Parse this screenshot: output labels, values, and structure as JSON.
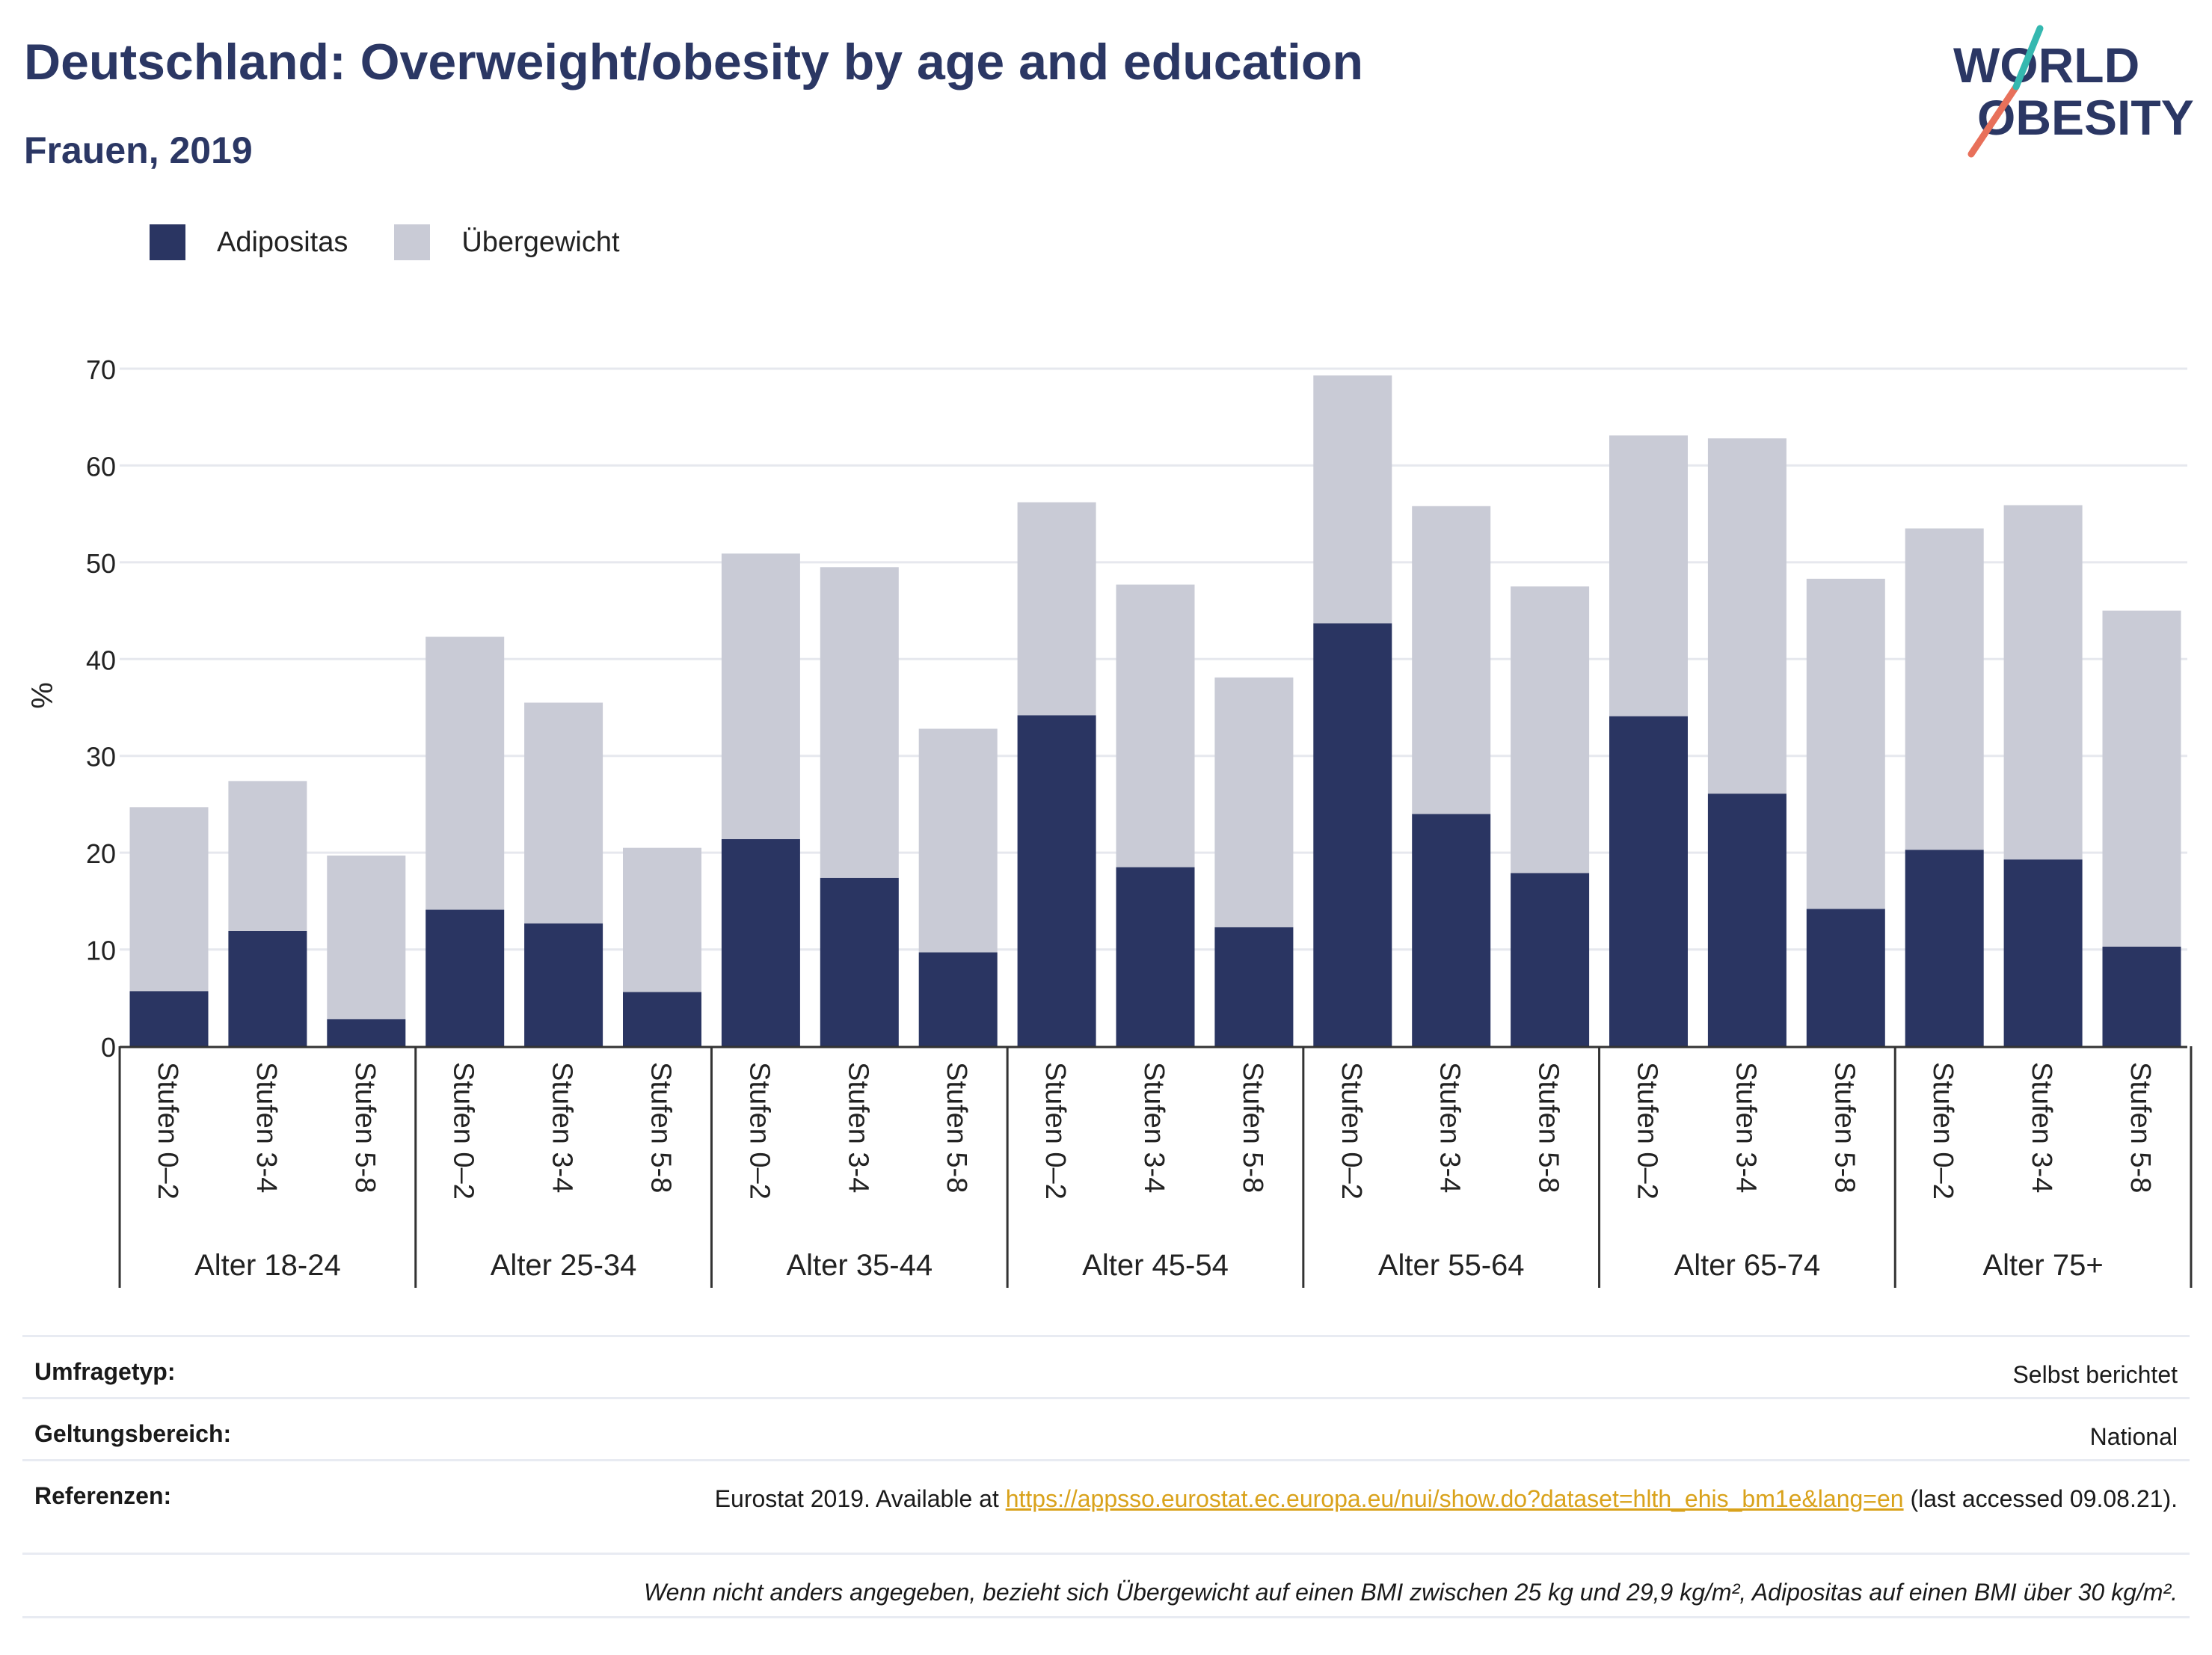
{
  "header": {
    "title": "Deutschland: Overweight/obesity by age and education",
    "subtitle": "Frauen, 2019"
  },
  "logo": {
    "line1": "WORLD",
    "line2": "OBESITY",
    "colors": {
      "text": "#2b3764",
      "stroke_coral": "#e8705a",
      "stroke_teal": "#35b8b0"
    }
  },
  "legend": {
    "obesity_label": "Adipositas",
    "overweight_label": "Übergewicht"
  },
  "colors": {
    "obesity": "#2a3562",
    "overweight": "#c9cbd6",
    "grid": "#e6e8ee",
    "axis": "#333333"
  },
  "chart_data": {
    "type": "bar",
    "stacked": true,
    "ylabel": "%",
    "ylim": [
      0,
      70
    ],
    "yticks": [
      0,
      10,
      20,
      30,
      40,
      50,
      60,
      70
    ],
    "grid": true,
    "legend_position": "top-left",
    "groups": [
      "Alter 18-24",
      "Alter 25-34",
      "Alter 35-44",
      "Alter 45-54",
      "Alter 55-64",
      "Alter 65-74",
      "Alter 75+"
    ],
    "subcategories": [
      "Stufen 0–2",
      "Stufen 3-4",
      "Stufen 5-8"
    ],
    "series": [
      {
        "name": "Adipositas",
        "values": [
          5.7,
          11.9,
          2.8,
          14.1,
          12.7,
          5.6,
          21.4,
          17.4,
          9.7,
          34.2,
          18.5,
          12.3,
          43.7,
          24.0,
          17.9,
          34.1,
          26.1,
          14.2,
          20.3,
          19.3,
          10.3
        ]
      },
      {
        "name": "Übergewicht",
        "values": [
          19.0,
          15.5,
          16.9,
          28.2,
          22.8,
          14.9,
          29.5,
          32.1,
          23.1,
          22.0,
          29.2,
          25.8,
          25.6,
          31.8,
          29.6,
          29.0,
          36.7,
          34.1,
          33.2,
          36.6,
          34.7
        ]
      }
    ]
  },
  "meta": {
    "survey_label": "Umfragetyp:",
    "survey_value": "Selbst berichtet",
    "scope_label": "Geltungsbereich:",
    "scope_value": "National",
    "ref_label": "Referenzen:",
    "ref_prefix": "Eurostat 2019. Available at ",
    "ref_link": "https://appsso.eurostat.ec.europa.eu/nui/show.do?dataset=hlth_ehis_bm1e&lang=en",
    "ref_suffix": " (last accessed 09.08.21).",
    "note": "Wenn nicht anders angegeben, bezieht sich Übergewicht auf einen BMI zwischen 25 kg und 29,9 kg/m², Adipositas auf einen BMI über 30 kg/m²."
  }
}
